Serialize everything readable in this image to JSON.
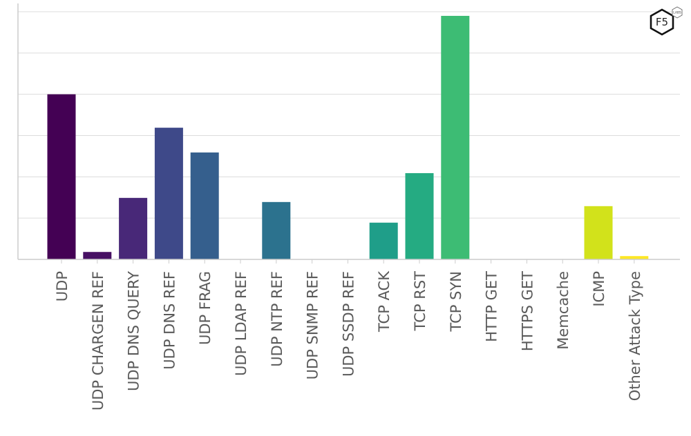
{
  "chart_data": {
    "type": "bar",
    "title": "",
    "xlabel": "",
    "ylabel": "",
    "ylim": [
      0,
      6
    ],
    "y_tick_labels_visible": false,
    "grid": true,
    "categories": [
      "UDP",
      "UDP CHARGEN REF",
      "UDP DNS QUERY",
      "UDP DNS REF",
      "UDP FRAG",
      "UDP LDAP REF",
      "UDP NTP REF",
      "UDP SNMP REF",
      "UDP SSDP REF",
      "TCP ACK",
      "TCP RST",
      "TCP SYN",
      "HTTP GET",
      "HTTPS GET",
      "Memcache",
      "ICMP",
      "Other Attack Type"
    ],
    "values": [
      4.0,
      0.18,
      1.49,
      3.19,
      2.59,
      0,
      1.39,
      0,
      0,
      0.89,
      2.09,
      5.9,
      0,
      0,
      0,
      1.29,
      0.08
    ],
    "colors": [
      "#440154",
      "#471063",
      "#482878",
      "#3e4989",
      "#355f8d",
      "#2f6c8e",
      "#2c728e",
      "#26828e",
      "#21918c",
      "#1f9e89",
      "#25ab82",
      "#3dbc74",
      "#5ec962",
      "#7ad151",
      "#a5db36",
      "#d2e21b",
      "#fde725"
    ]
  },
  "logo": {
    "text": "F5",
    "badge": "LABS"
  }
}
